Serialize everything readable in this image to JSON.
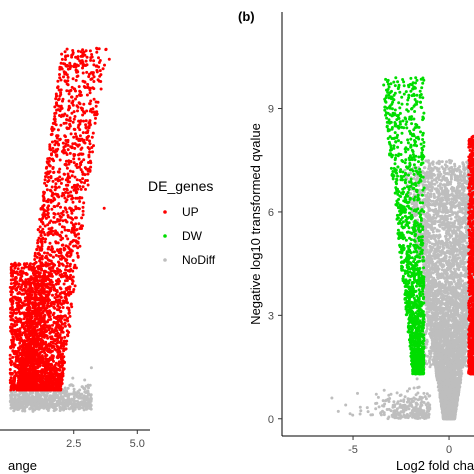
{
  "chart_data": [
    {
      "panel": "",
      "type": "scatter",
      "title": "",
      "xlabel": "ange",
      "ylabel": "",
      "xlim": [
        -0.4,
        5.5
      ],
      "ylim": [
        -0.5,
        11
      ],
      "x_ticks": [
        2.5,
        5.0
      ],
      "x_tick_labels": [
        "2.5",
        "5.0"
      ],
      "grid": false,
      "series": [
        {
          "name": "UP",
          "color": "#ff0000",
          "cloud": {
            "x_range": [
              0,
              3.9
            ],
            "y_max": 10.2
          }
        },
        {
          "name": "NoDiff",
          "color": "#bebebe",
          "cloud": {
            "x_range": [
              0,
              3.2
            ],
            "y_max": 1.0
          }
        }
      ],
      "highlight_points": [
        {
          "series": "UP",
          "x": 3.4,
          "y": 10.0
        },
        {
          "series": "UP",
          "x": 3.9,
          "y": 9.7
        },
        {
          "series": "UP",
          "x": 3.5,
          "y": 9.1
        },
        {
          "series": "UP",
          "x": 3.3,
          "y": 8.6
        },
        {
          "series": "UP",
          "x": 3.7,
          "y": 5.6
        }
      ]
    },
    {
      "panel": "(b)",
      "type": "scatter",
      "title": "",
      "xlabel": "Log2 fold cha",
      "ylabel": "Negative log10 transformed qvalue",
      "xlim": [
        -8.7,
        1.3
      ],
      "ylim": [
        -0.5,
        11.8
      ],
      "x_ticks": [
        -5,
        0
      ],
      "x_tick_labels": [
        "-5",
        "0"
      ],
      "y_ticks": [
        0,
        3,
        6,
        9
      ],
      "y_tick_labels": [
        "0",
        "3",
        "6",
        "9"
      ],
      "grid": false,
      "series": [
        {
          "name": "DW",
          "color": "#00dd00",
          "cloud": {
            "x_range": [
              -3.8,
              -1.3
            ],
            "y_max": 9.9
          }
        },
        {
          "name": "UP",
          "color": "#ff0000",
          "cloud": {
            "x_range": [
              1.0,
              1.3
            ],
            "y_max": 8.2
          }
        },
        {
          "name": "NoDiff",
          "color": "#bebebe",
          "cloud": {
            "x_range": [
              -7.1,
              1.3
            ],
            "y_max": 7.5
          }
        }
      ]
    }
  ],
  "legend": {
    "title": "DE_genes",
    "placement": "center",
    "items": [
      {
        "label": "UP",
        "color": "#ff0000"
      },
      {
        "label": "DW",
        "color": "#00dd00"
      },
      {
        "label": "NoDiff",
        "color": "#bebebe"
      }
    ]
  }
}
